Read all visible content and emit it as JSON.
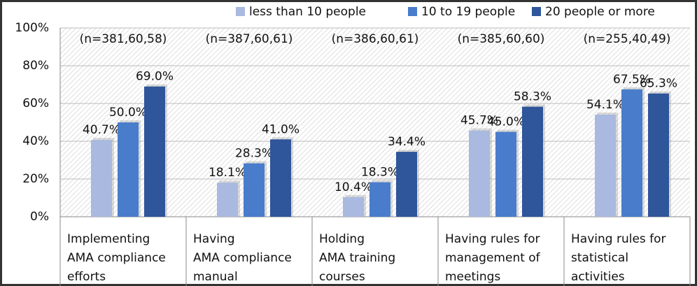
{
  "chart_data": {
    "type": "bar",
    "categories": [
      "Implementing\nAMA compliance\nefforts",
      "Having\nAMA compliance\nmanual",
      "Holding\nAMA training\ncourses",
      "Having rules for\nmanagement of\nmeetings",
      "Having rules for\nstatistical\nactivities"
    ],
    "annotations": [
      "(n=381,60,58)",
      "(n=387,60,61)",
      "(n=386,60,61)",
      "(n=385,60,60)",
      "(n=255,40,49)"
    ],
    "series": [
      {
        "name": "less than 10 people",
        "color": "#a9b9df",
        "values": [
          40.7,
          18.1,
          10.4,
          45.7,
          54.1
        ],
        "value_labels": [
          "40.7%",
          "18.1%",
          "10.4%",
          "45.7%",
          "54.1%"
        ]
      },
      {
        "name": "10 to 19 people",
        "color": "#4a7ccc",
        "values": [
          50.0,
          28.3,
          18.3,
          45.0,
          67.5
        ],
        "value_labels": [
          "50.0%",
          "28.3%",
          "18.3%",
          "45.0%",
          "67.5%"
        ]
      },
      {
        "name": "20 people or more",
        "color": "#2f559a",
        "values": [
          69.0,
          41.0,
          34.4,
          58.3,
          65.3
        ],
        "value_labels": [
          "69.0%",
          "41.0%",
          "34.4%",
          "58.3%",
          "65.3%"
        ]
      }
    ],
    "ylim": [
      0,
      100
    ],
    "yticks": [
      {
        "value": 0,
        "label": "0%"
      },
      {
        "value": 20,
        "label": "20%"
      },
      {
        "value": 40,
        "label": "40%"
      },
      {
        "value": 60,
        "label": "60%"
      },
      {
        "value": 80,
        "label": "80%"
      },
      {
        "value": 100,
        "label": "100%"
      }
    ],
    "grid": true,
    "legend": "top-right"
  }
}
